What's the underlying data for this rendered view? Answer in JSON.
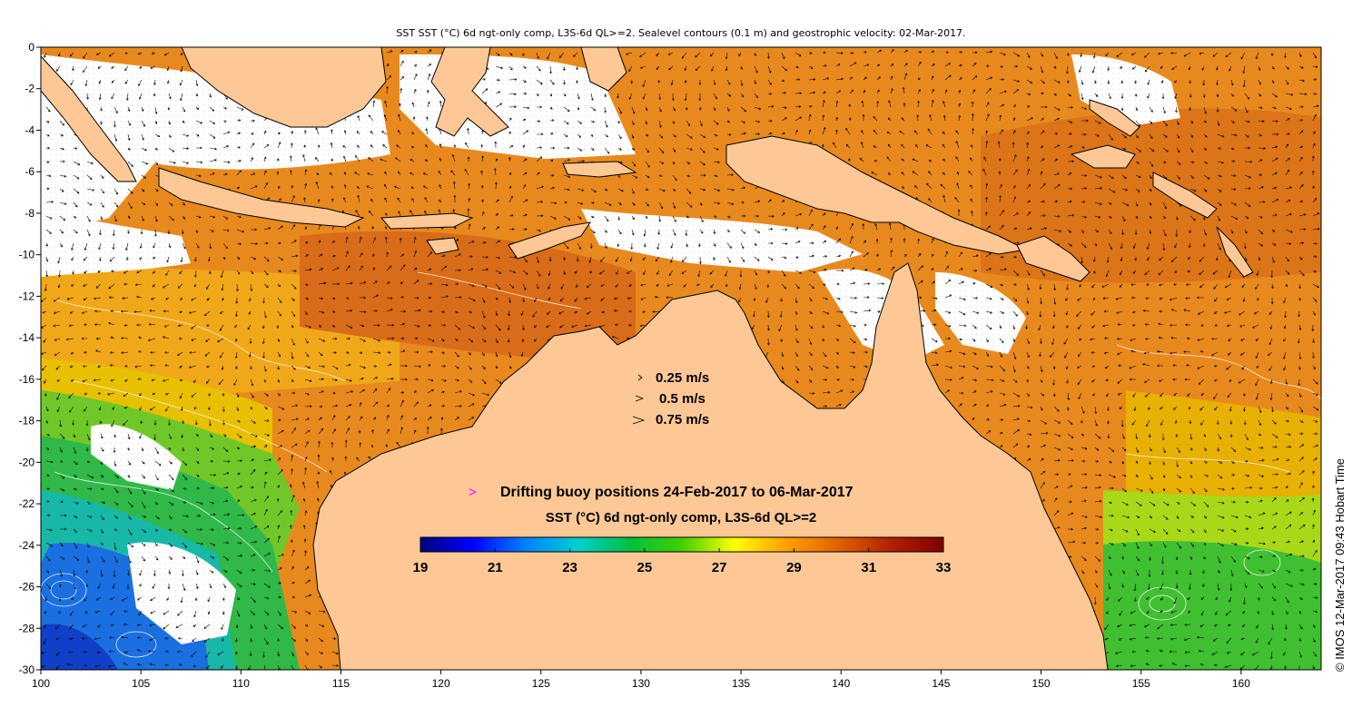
{
  "title": "SST SST (°C) 6d ngt-only comp, L3S-6d QL>=2. Sealevel contours (0.1 m) and geostrophic velocity: 02-Mar-2017.",
  "credit": "© IMOS 12-Mar-2017 09:43 Hobart Time",
  "axes": {
    "x_ticks": [
      "100",
      "105",
      "110",
      "115",
      "120",
      "125",
      "130",
      "135",
      "140",
      "145",
      "150",
      "155",
      "160"
    ],
    "y_ticks": [
      "0",
      "-2",
      "-4",
      "-6",
      "-8",
      "-10",
      "-12",
      "-14",
      "-16",
      "-18",
      "-20",
      "-22",
      "-24",
      "-26",
      "-28",
      "-30"
    ],
    "lon_range": [
      100,
      164
    ],
    "lat_range": [
      -30,
      0
    ]
  },
  "velocity_legend": {
    "items": [
      {
        "label": "0.25 m/s"
      },
      {
        "label": "0.5 m/s"
      },
      {
        "label": "0.75 m/s"
      }
    ]
  },
  "buoy_legend": {
    "symbol": ">",
    "label": "Drifting buoy positions 24-Feb-2017 to 06-Mar-2017",
    "color": "#ff00ff"
  },
  "colorbar": {
    "title": "SST (°C) 6d ngt-only comp, L3S-6d QL>=2",
    "ticks": [
      "19",
      "21",
      "23",
      "25",
      "27",
      "29",
      "31",
      "33"
    ],
    "range": [
      19,
      33
    ],
    "stops": [
      "#00007f",
      "#0000ff",
      "#0080ff",
      "#00d0d0",
      "#00c040",
      "#40d000",
      "#ffff00",
      "#ffa000",
      "#e06000",
      "#b02000",
      "#800000"
    ]
  },
  "colors": {
    "land": "#fdc896",
    "missing": "#ffffff",
    "warm": "#ea8c1e",
    "hot": "#d8701a",
    "mid": "#f0b800",
    "green": "#4cc030",
    "cool": "#20b8a0",
    "cold": "#1a60e0",
    "contour": "#ffffff",
    "coast": "#000000"
  }
}
